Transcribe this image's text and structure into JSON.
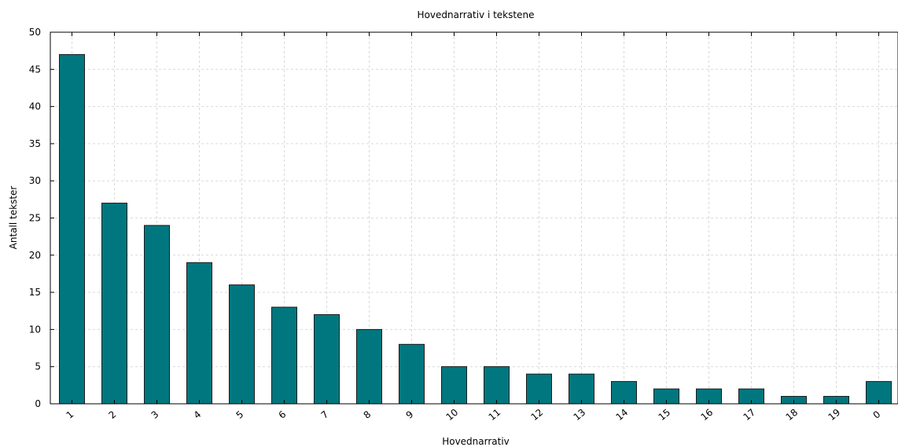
{
  "chart_data": {
    "type": "bar",
    "title": "Hovednarrativ i tekstene",
    "xlabel": "Hovednarrativ",
    "ylabel": "Antall tekster",
    "categories": [
      "1",
      "2",
      "3",
      "4",
      "5",
      "6",
      "7",
      "8",
      "9",
      "10",
      "11",
      "12",
      "13",
      "14",
      "15",
      "16",
      "17",
      "18",
      "19",
      "0"
    ],
    "values": [
      47,
      27,
      24,
      19,
      16,
      13,
      12,
      10,
      8,
      5,
      5,
      4,
      4,
      3,
      2,
      2,
      2,
      1,
      1,
      3
    ],
    "ylim": [
      0,
      50
    ],
    "yticks": [
      0,
      5,
      10,
      15,
      20,
      25,
      30,
      35,
      40,
      45,
      50
    ],
    "grid": true,
    "bar_color": "#00777f"
  }
}
